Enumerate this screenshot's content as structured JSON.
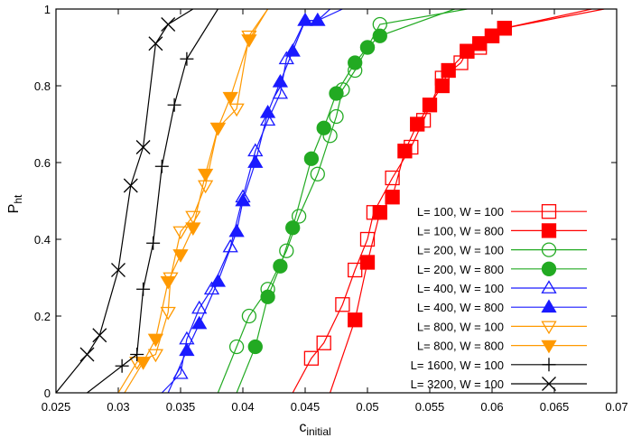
{
  "chart_data": {
    "type": "line",
    "x_label": "c",
    "x_label_sub": "initial",
    "y_label": "P",
    "y_label_sub": "ht",
    "xlim": [
      0.025,
      0.07
    ],
    "xticks": [
      0.025,
      0.03,
      0.035,
      0.04,
      0.045,
      0.05,
      0.055,
      0.06,
      0.065,
      0.07
    ],
    "ylim": [
      0,
      1
    ],
    "yticks": [
      0,
      0.2,
      0.4,
      0.6,
      0.8,
      1
    ],
    "legend": "lower right",
    "series": [
      {
        "name": "L= 100, W = 100",
        "color": "#ff0000",
        "marker": "square-open",
        "x": [
          0.044,
          0.0455,
          0.0465,
          0.048,
          0.049,
          0.05,
          0.0505,
          0.052,
          0.0535,
          0.0545,
          0.056,
          0.0575,
          0.058,
          0.059,
          0.06,
          0.061,
          0.069
        ],
        "values": [
          0,
          0.09,
          0.13,
          0.23,
          0.32,
          0.4,
          0.47,
          0.56,
          0.64,
          0.71,
          0.82,
          0.86,
          0.89,
          0.9,
          0.93,
          0.95,
          1
        ]
      },
      {
        "name": "L= 100, W = 800",
        "color": "#ff0000",
        "marker": "square-filled",
        "x": [
          0.047,
          0.049,
          0.05,
          0.051,
          0.052,
          0.053,
          0.054,
          0.055,
          0.056,
          0.0565,
          0.058,
          0.059,
          0.06,
          0.061,
          0.068
        ],
        "values": [
          0,
          0.19,
          0.34,
          0.47,
          0.51,
          0.63,
          0.7,
          0.75,
          0.8,
          0.84,
          0.89,
          0.91,
          0.93,
          0.95,
          1
        ]
      },
      {
        "name": "L= 200, W = 100",
        "color": "#22aa22",
        "marker": "circle-open",
        "x": [
          0.038,
          0.0395,
          0.0405,
          0.042,
          0.0435,
          0.0445,
          0.046,
          0.047,
          0.0475,
          0.048,
          0.049,
          0.05,
          0.051,
          0.058
        ],
        "values": [
          0,
          0.12,
          0.2,
          0.27,
          0.37,
          0.46,
          0.57,
          0.67,
          0.72,
          0.79,
          0.84,
          0.9,
          0.96,
          1
        ]
      },
      {
        "name": "L= 200, W = 800",
        "color": "#22aa22",
        "marker": "circle-filled",
        "x": [
          0.0395,
          0.041,
          0.042,
          0.043,
          0.044,
          0.0455,
          0.0465,
          0.0475,
          0.049,
          0.05,
          0.051,
          0.057
        ],
        "values": [
          0,
          0.12,
          0.25,
          0.33,
          0.43,
          0.61,
          0.69,
          0.78,
          0.86,
          0.9,
          0.93,
          1
        ]
      },
      {
        "name": "L= 400, W = 100",
        "color": "#1a1aff",
        "marker": "triangle-open",
        "x": [
          0.0335,
          0.035,
          0.0355,
          0.0365,
          0.0375,
          0.039,
          0.04,
          0.041,
          0.042,
          0.043,
          0.0435,
          0.045,
          0.046,
          0.048
        ],
        "values": [
          0,
          0.05,
          0.14,
          0.22,
          0.27,
          0.38,
          0.51,
          0.63,
          0.71,
          0.78,
          0.87,
          0.97,
          0.97,
          1
        ]
      },
      {
        "name": "L= 400, W = 800",
        "color": "#1a1aff",
        "marker": "triangle-filled",
        "x": [
          0.034,
          0.0355,
          0.0365,
          0.038,
          0.0395,
          0.04,
          0.041,
          0.042,
          0.043,
          0.044,
          0.045,
          0.046,
          0.047
        ],
        "values": [
          0,
          0.11,
          0.18,
          0.29,
          0.42,
          0.5,
          0.6,
          0.73,
          0.81,
          0.89,
          0.97,
          0.97,
          1
        ]
      },
      {
        "name": "L= 800, W = 100",
        "color": "#ff9900",
        "marker": "tridown-open",
        "x": [
          0.03,
          0.0315,
          0.033,
          0.034,
          0.0342,
          0.035,
          0.036,
          0.037,
          0.038,
          0.0395,
          0.0405,
          0.042
        ],
        "values": [
          0,
          0.08,
          0.1,
          0.21,
          0.3,
          0.42,
          0.46,
          0.54,
          0.69,
          0.74,
          0.93,
          1
        ]
      },
      {
        "name": "L= 800, W = 800",
        "color": "#ff9900",
        "marker": "tridown-filled",
        "x": [
          0.0305,
          0.032,
          0.033,
          0.034,
          0.035,
          0.036,
          0.037,
          0.038,
          0.039,
          0.0405,
          0.042
        ],
        "values": [
          0,
          0.08,
          0.14,
          0.29,
          0.36,
          0.43,
          0.57,
          0.69,
          0.77,
          0.92,
          1
        ]
      },
      {
        "name": "L= 1600, W = 100",
        "color": "#000000",
        "marker": "plus",
        "x": [
          0.0275,
          0.0303,
          0.0315,
          0.032,
          0.0328,
          0.0335,
          0.0345,
          0.0355,
          0.038
        ],
        "values": [
          0,
          0.07,
          0.1,
          0.27,
          0.39,
          0.59,
          0.75,
          0.87,
          1
        ]
      },
      {
        "name": "L= 3200, W = 100",
        "color": "#000000",
        "marker": "cross",
        "x": [
          0.025,
          0.0275,
          0.0285,
          0.03,
          0.031,
          0.032,
          0.033,
          0.034,
          0.036
        ],
        "values": [
          0,
          0.1,
          0.15,
          0.32,
          0.54,
          0.64,
          0.91,
          0.96,
          1
        ]
      }
    ]
  }
}
